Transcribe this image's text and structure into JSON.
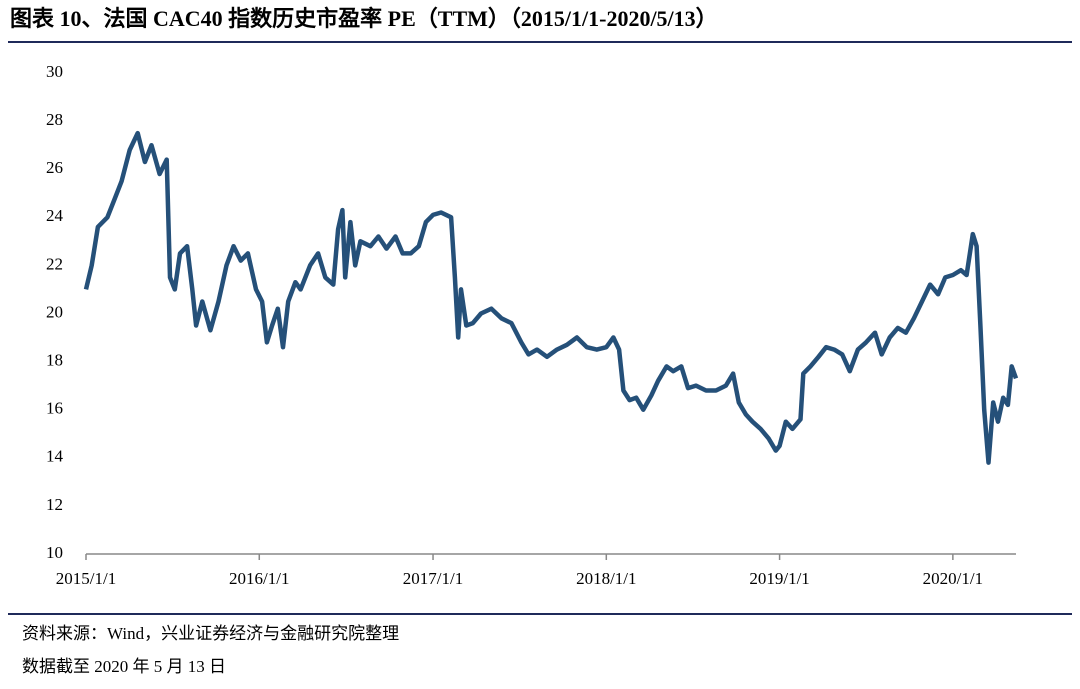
{
  "chart_data": {
    "type": "line",
    "title": "图表 10、法国 CAC40 指数历史市盈率 PE（TTM）（2015/1/1-2020/5/13）",
    "source": "资料来源：Wind，兴业证券经济与金融研究院整理",
    "note": "数据截至 2020 年 5 月 13 日",
    "x": [
      "2015/1/1",
      "2015/1/13",
      "2015/1/26",
      "2015/2/15",
      "2015/3/3",
      "2015/3/17",
      "2015/4/3",
      "2015/4/20",
      "2015/5/5",
      "2015/5/19",
      "2015/6/5",
      "2015/6/20",
      "2015/6/27",
      "2015/7/7",
      "2015/7/18",
      "2015/8/2",
      "2015/8/13",
      "2015/8/21",
      "2015/9/3",
      "2015/9/20",
      "2015/10/7",
      "2015/10/24",
      "2015/11/8",
      "2015/11/23",
      "2015/12/8",
      "2015/12/25",
      "2016/1/7",
      "2016/1/17",
      "2016/1/28",
      "2016/2/9",
      "2016/2/20",
      "2016/3/2",
      "2016/3/17",
      "2016/3/28",
      "2016/4/17",
      "2016/5/4",
      "2016/5/19",
      "2016/6/5",
      "2016/6/15",
      "2016/6/24",
      "2016/6/30",
      "2016/7/11",
      "2016/7/21",
      "2016/8/1",
      "2016/8/22",
      "2016/9/8",
      "2016/9/25",
      "2016/10/14",
      "2016/10/29",
      "2016/11/15",
      "2016/12/2",
      "2016/12/17",
      "2017/1/1",
      "2017/1/18",
      "2017/2/8",
      "2017/2/16",
      "2017/2/23",
      "2017/3/1",
      "2017/3/12",
      "2017/3/26",
      "2017/4/12",
      "2017/5/4",
      "2017/5/25",
      "2017/6/15",
      "2017/7/6",
      "2017/7/21",
      "2017/8/8",
      "2017/8/29",
      "2017/9/19",
      "2017/10/10",
      "2017/10/31",
      "2017/11/21",
      "2017/12/12",
      "2018/1/1",
      "2018/1/16",
      "2018/1/28",
      "2018/2/6",
      "2018/2/19",
      "2018/3/5",
      "2018/3/20",
      "2018/4/6",
      "2018/4/20",
      "2018/5/8",
      "2018/5/22",
      "2018/6/8",
      "2018/6/22",
      "2018/7/9",
      "2018/7/30",
      "2018/8/20",
      "2018/9/10",
      "2018/9/25",
      "2018/10/7",
      "2018/10/22",
      "2018/11/5",
      "2018/11/22",
      "2018/12/9",
      "2018/12/24",
      "2019/1/1",
      "2019/1/14",
      "2019/1/28",
      "2019/2/14",
      "2019/2/20",
      "2019/3/7",
      "2019/3/24",
      "2019/4/9",
      "2019/4/26",
      "2019/5/13",
      "2019/5/29",
      "2019/6/15",
      "2019/7/2",
      "2019/7/21",
      "2019/8/4",
      "2019/8/21",
      "2019/9/7",
      "2019/9/24",
      "2019/10/11",
      "2019/10/28",
      "2019/11/14",
      "2019/12/1",
      "2019/12/16",
      "2020/1/1",
      "2020/1/18",
      "2020/1/30",
      "2020/2/12",
      "2020/2/20",
      "2020/2/28",
      "2020/3/7",
      "2020/3/16",
      "2020/3/26",
      "2020/4/5",
      "2020/4/16",
      "2020/4/26",
      "2020/5/4",
      "2020/5/13"
    ],
    "series": [
      {
        "color": "#255079",
        "values": [
          21.0,
          22.0,
          23.6,
          24.0,
          24.8,
          25.5,
          26.8,
          27.5,
          26.3,
          27.0,
          25.8,
          26.4,
          21.5,
          21.0,
          22.5,
          22.8,
          21.0,
          19.5,
          20.5,
          19.3,
          20.5,
          22.0,
          22.8,
          22.2,
          22.5,
          21.0,
          20.5,
          18.8,
          19.5,
          20.2,
          18.6,
          20.5,
          21.3,
          21.0,
          22.0,
          22.5,
          21.5,
          21.2,
          23.5,
          24.3,
          21.5,
          23.8,
          22.0,
          23.0,
          22.8,
          23.2,
          22.7,
          23.2,
          22.5,
          22.5,
          22.8,
          23.8,
          24.1,
          24.2,
          24.0,
          21.5,
          19.0,
          21.0,
          19.5,
          19.6,
          20.0,
          20.2,
          19.8,
          19.6,
          18.8,
          18.3,
          18.5,
          18.2,
          18.5,
          18.7,
          19.0,
          18.6,
          18.5,
          18.6,
          19.0,
          18.5,
          16.8,
          16.4,
          16.5,
          16.0,
          16.6,
          17.2,
          17.8,
          17.6,
          17.8,
          16.9,
          17.0,
          16.8,
          16.8,
          17.0,
          17.5,
          16.3,
          15.8,
          15.5,
          15.2,
          14.8,
          14.3,
          14.5,
          15.5,
          15.2,
          15.6,
          17.5,
          17.8,
          18.2,
          18.6,
          18.5,
          18.3,
          17.6,
          18.5,
          18.8,
          19.2,
          18.3,
          19.0,
          19.4,
          19.2,
          19.8,
          20.5,
          21.2,
          20.8,
          21.5,
          21.6,
          21.8,
          21.6,
          23.3,
          22.8,
          19.5,
          16.0,
          13.8,
          16.3,
          15.5,
          16.5,
          16.2,
          17.8,
          17.3
        ]
      }
    ],
    "xlim": [
      "2015/1/1",
      "2020/5/13"
    ],
    "xticks": [
      "2015/1/1",
      "2016/1/1",
      "2017/1/1",
      "2018/1/1",
      "2019/1/1",
      "2020/1/1"
    ],
    "ylim": [
      10,
      30
    ],
    "yticks": [
      10,
      12,
      14,
      16,
      18,
      20,
      22,
      24,
      26,
      28,
      30
    ]
  }
}
